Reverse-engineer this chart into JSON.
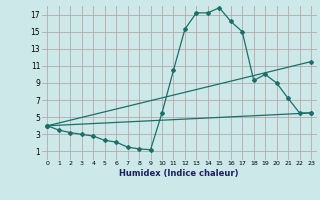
{
  "xlabel": "Humidex (Indice chaleur)",
  "bg_color": "#cce8e8",
  "grid_color": "#b8a8a8",
  "line_color": "#1a7068",
  "xlim": [
    -0.5,
    23.5
  ],
  "ylim": [
    0,
    18
  ],
  "xticks": [
    0,
    1,
    2,
    3,
    4,
    5,
    6,
    7,
    8,
    9,
    10,
    11,
    12,
    13,
    14,
    15,
    16,
    17,
    18,
    19,
    20,
    21,
    22,
    23
  ],
  "yticks": [
    1,
    3,
    5,
    7,
    9,
    11,
    13,
    15,
    17
  ],
  "line1_x": [
    0,
    1,
    2,
    3,
    4,
    5,
    6,
    7,
    8,
    9,
    10,
    11,
    12,
    13,
    14,
    15,
    16,
    17,
    18,
    19,
    20,
    21,
    22,
    23
  ],
  "line1_y": [
    4.0,
    3.5,
    3.2,
    3.0,
    2.8,
    2.3,
    2.1,
    1.5,
    1.3,
    1.2,
    5.5,
    10.5,
    15.3,
    17.2,
    17.2,
    17.8,
    16.2,
    15.0,
    9.3,
    10.0,
    9.0,
    7.2,
    5.5,
    5.5
  ],
  "line2_x": [
    0,
    23
  ],
  "line2_y": [
    4.0,
    11.5
  ],
  "line3_x": [
    0,
    23
  ],
  "line3_y": [
    4.0,
    5.5
  ]
}
